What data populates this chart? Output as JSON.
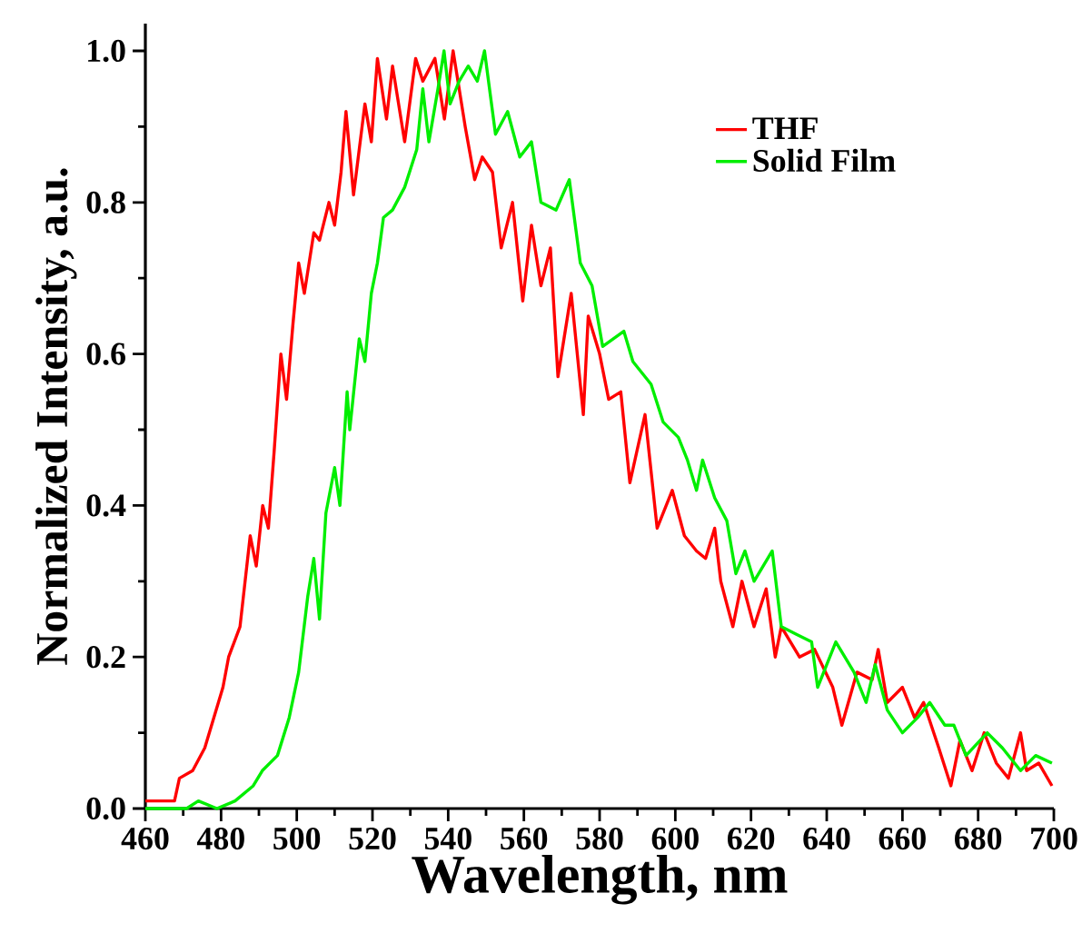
{
  "chart_data": {
    "type": "line",
    "xlabel": "Wavelength, nm",
    "ylabel": "Normalized Intensity, a.u.",
    "xlim": [
      460,
      700
    ],
    "ylim": [
      0,
      1.036
    ],
    "xticks": [
      460,
      480,
      500,
      520,
      540,
      560,
      580,
      600,
      620,
      640,
      660,
      680,
      700
    ],
    "yticks": [
      {
        "value": 0,
        "label": "0.0"
      },
      {
        "value": 0.2,
        "label": "0.2"
      },
      {
        "value": 0.4,
        "label": "0.4"
      },
      {
        "value": 0.6,
        "label": "0.6"
      },
      {
        "value": 0.8,
        "label": "0.8"
      },
      {
        "value": 1.0,
        "label": "1.0"
      }
    ],
    "legend": "top right",
    "series": [
      {
        "name": "THF",
        "color": "#ff0000",
        "x": [
          460,
          467.7,
          469,
          472.5,
          475.7,
          480.5,
          482,
          485,
          487.7,
          489.3,
          491,
          492.5,
          494,
          495.8,
          497.3,
          499,
          500.5,
          502,
          504.5,
          506,
          508.5,
          510,
          511.7,
          513,
          515,
          518,
          519.7,
          521.3,
          523.7,
          525.3,
          528.5,
          531.4,
          533.3,
          536.5,
          539,
          541.3,
          544.5,
          547,
          549,
          551.7,
          554,
          557,
          559.7,
          562,
          564.5,
          567,
          569,
          572.5,
          575.7,
          577,
          580,
          582.4,
          585.6,
          588,
          592,
          595.2,
          599.2,
          602.4,
          605.6,
          608,
          610.4,
          612,
          615.2,
          617.6,
          620.8,
          624,
          626.4,
          628,
          632.8,
          636.8,
          641.6,
          644,
          648,
          652,
          653.6,
          656,
          660,
          663.2,
          665.6,
          669.6,
          672.8,
          675.2,
          678.4,
          681.6,
          684.8,
          688,
          691.2,
          692.8,
          696,
          699.5
        ],
        "values": [
          0.01,
          0.01,
          0.04,
          0.05,
          0.08,
          0.16,
          0.2,
          0.24,
          0.36,
          0.32,
          0.4,
          0.37,
          0.47,
          0.6,
          0.54,
          0.64,
          0.72,
          0.68,
          0.76,
          0.75,
          0.8,
          0.77,
          0.84,
          0.92,
          0.81,
          0.93,
          0.88,
          0.99,
          0.91,
          0.98,
          0.88,
          0.99,
          0.96,
          0.99,
          0.91,
          1.0,
          0.9,
          0.83,
          0.86,
          0.84,
          0.74,
          0.8,
          0.67,
          0.77,
          0.69,
          0.74,
          0.57,
          0.68,
          0.52,
          0.65,
          0.6,
          0.54,
          0.55,
          0.43,
          0.52,
          0.37,
          0.42,
          0.36,
          0.34,
          0.33,
          0.37,
          0.3,
          0.24,
          0.3,
          0.24,
          0.29,
          0.2,
          0.24,
          0.2,
          0.21,
          0.16,
          0.11,
          0.18,
          0.17,
          0.21,
          0.14,
          0.16,
          0.12,
          0.14,
          0.08,
          0.03,
          0.09,
          0.05,
          0.1,
          0.06,
          0.04,
          0.1,
          0.05,
          0.06,
          0.03
        ]
      },
      {
        "name": "Solid Film",
        "color": "#00ee00",
        "x": [
          460,
          470.9,
          474,
          478.9,
          483.7,
          488.5,
          490.9,
          494.9,
          498,
          500.5,
          502.9,
          504.5,
          506,
          507.7,
          510,
          511.4,
          513.3,
          514,
          516.5,
          518,
          519.7,
          521.3,
          522.9,
          525.3,
          528.5,
          531.7,
          533.3,
          534.9,
          537.3,
          538.9,
          540.5,
          542.9,
          545.3,
          547.7,
          549.6,
          552.5,
          555.7,
          558.9,
          562,
          564.5,
          568.5,
          572,
          574.9,
          578,
          580.8,
          586.4,
          588.8,
          593.6,
          596.8,
          600.8,
          603.2,
          605.6,
          607.2,
          610.4,
          613.6,
          616,
          618.4,
          620.8,
          625.6,
          628,
          632,
          636,
          637.6,
          642.4,
          647.2,
          650.4,
          652.8,
          656,
          660,
          664,
          667.2,
          671.2,
          673.6,
          676.8,
          682.4,
          686.4,
          691.2,
          695.2,
          699.5
        ],
        "values": [
          0.0,
          0.0,
          0.01,
          0.0,
          0.01,
          0.03,
          0.05,
          0.07,
          0.12,
          0.18,
          0.28,
          0.33,
          0.25,
          0.39,
          0.45,
          0.4,
          0.55,
          0.5,
          0.62,
          0.59,
          0.68,
          0.72,
          0.78,
          0.79,
          0.82,
          0.87,
          0.95,
          0.88,
          0.95,
          1.0,
          0.93,
          0.96,
          0.98,
          0.96,
          1.0,
          0.89,
          0.92,
          0.86,
          0.88,
          0.8,
          0.79,
          0.83,
          0.72,
          0.69,
          0.61,
          0.63,
          0.59,
          0.56,
          0.51,
          0.49,
          0.46,
          0.42,
          0.46,
          0.41,
          0.38,
          0.31,
          0.34,
          0.3,
          0.34,
          0.24,
          0.23,
          0.22,
          0.16,
          0.22,
          0.18,
          0.14,
          0.19,
          0.13,
          0.1,
          0.12,
          0.14,
          0.11,
          0.11,
          0.07,
          0.1,
          0.08,
          0.05,
          0.07,
          0.06
        ]
      }
    ]
  }
}
